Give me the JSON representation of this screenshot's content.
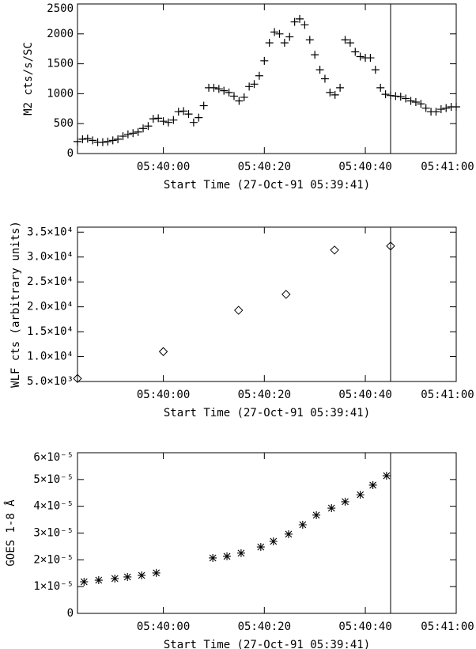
{
  "chart_data": [
    {
      "type": "scatter",
      "marker": "plus",
      "color": "#000000",
      "xlabel": "Start Time (27-Oct-91 05:39:41)",
      "ylabel": "M2 cts/s/SC",
      "xlim": [
        2,
        77
      ],
      "ylim": [
        0,
        2500
      ],
      "xticks": [
        {
          "value": 19,
          "label": "05:40:00"
        },
        {
          "value": 39,
          "label": "05:40:20"
        },
        {
          "value": 59,
          "label": "05:40:40"
        },
        {
          "value": 79,
          "label": "05:41:00"
        }
      ],
      "yticks": [
        0,
        500,
        1000,
        1500,
        2000,
        2500
      ],
      "cursor_x": 64,
      "x": [
        2,
        3,
        4,
        5,
        6,
        7,
        8,
        9,
        10,
        11,
        12,
        13,
        14,
        15,
        16,
        17,
        18,
        19,
        20,
        21,
        22,
        23,
        24,
        25,
        26,
        27,
        28,
        29,
        30,
        31,
        32,
        33,
        34,
        35,
        36,
        37,
        38,
        39,
        40,
        41,
        42,
        43,
        44,
        45,
        46,
        47,
        48,
        49,
        50,
        51,
        52,
        53,
        54,
        55,
        56,
        57,
        58,
        59,
        60,
        61,
        62,
        63,
        64,
        65,
        66,
        67,
        68,
        69,
        70,
        71,
        72,
        73,
        74,
        75,
        76,
        77
      ],
      "values": [
        200,
        240,
        250,
        220,
        190,
        190,
        200,
        220,
        240,
        290,
        320,
        340,
        360,
        420,
        460,
        580,
        590,
        540,
        520,
        560,
        700,
        710,
        660,
        520,
        600,
        800,
        1100,
        1100,
        1080,
        1050,
        1020,
        960,
        880,
        940,
        1120,
        1160,
        1300,
        1550,
        1850,
        2030,
        2000,
        1850,
        1950,
        2200,
        2250,
        2150,
        1900,
        1650,
        1400,
        1250,
        1020,
        980,
        1100,
        1900,
        1850,
        1700,
        1620,
        1600,
        1600,
        1400,
        1100,
        990,
        970,
        960,
        950,
        920,
        880,
        860,
        830,
        760,
        700,
        700,
        740,
        760,
        780,
        780
      ]
    },
    {
      "type": "scatter",
      "marker": "diamond",
      "color": "#000000",
      "xlabel": "Start Time (27-Oct-91 05:39:41)",
      "ylabel": "WLF cts (arbitrary units)",
      "xlim": [
        2,
        77
      ],
      "ylim": [
        5000,
        36000
      ],
      "xticks": [
        {
          "value": 19,
          "label": "05:40:00"
        },
        {
          "value": 39,
          "label": "05:40:20"
        },
        {
          "value": 59,
          "label": "05:40:40"
        },
        {
          "value": 79,
          "label": "05:41:00"
        }
      ],
      "yticks": [
        {
          "value": 5000,
          "label": "5.0×10³"
        },
        {
          "value": 10000,
          "label": "1.0×10⁴"
        },
        {
          "value": 15000,
          "label": "1.5×10⁴"
        },
        {
          "value": 20000,
          "label": "2.0×10⁴"
        },
        {
          "value": 25000,
          "label": "2.5×10⁴"
        },
        {
          "value": 30000,
          "label": "3.0×10⁴"
        },
        {
          "value": 35000,
          "label": "3.5×10⁴"
        }
      ],
      "cursor_x": 64,
      "x": [
        2,
        19,
        33.9,
        43.3,
        52.9,
        64
      ],
      "values": [
        5600,
        11000,
        19300,
        22500,
        31400,
        32200
      ]
    },
    {
      "type": "scatter",
      "marker": "asterisk",
      "color": "#000000",
      "xlabel": "Start Time (27-Oct-91 05:39:41)",
      "ylabel": "GOES 1-8 Å",
      "xlim": [
        2,
        77
      ],
      "ylim": [
        0,
        6e-05
      ],
      "xticks": [
        {
          "value": 19,
          "label": "05:40:00"
        },
        {
          "value": 39,
          "label": "05:40:20"
        },
        {
          "value": 59,
          "label": "05:40:40"
        },
        {
          "value": 79,
          "label": "05:41:00"
        }
      ],
      "yticks": [
        0,
        {
          "value": 1e-05,
          "label": "1×10⁻⁵"
        },
        {
          "value": 2e-05,
          "label": "2×10⁻⁵"
        },
        {
          "value": 3e-05,
          "label": "3×10⁻⁵"
        },
        {
          "value": 4e-05,
          "label": "4×10⁻⁵"
        },
        {
          "value": 5e-05,
          "label": "5×10⁻⁵"
        },
        {
          "value": 6e-05,
          "label": "6×10⁻⁵"
        }
      ],
      "cursor_x": 64,
      "x": [
        3.3,
        6.2,
        9.4,
        11.9,
        14.7,
        17.6,
        28.8,
        31.6,
        34.4,
        38.3,
        40.8,
        43.8,
        46.6,
        49.3,
        52.3,
        55,
        58,
        60.5,
        63.2
      ],
      "values": [
        1.18e-05,
        1.24e-05,
        1.3e-05,
        1.36e-05,
        1.42e-05,
        1.51e-05,
        2.07e-05,
        2.13e-05,
        2.25e-05,
        2.48e-05,
        2.69e-05,
        2.96e-05,
        3.31e-05,
        3.67e-05,
        3.93e-05,
        4.17e-05,
        4.43e-05,
        4.79e-05,
        5.14e-05
      ]
    }
  ]
}
